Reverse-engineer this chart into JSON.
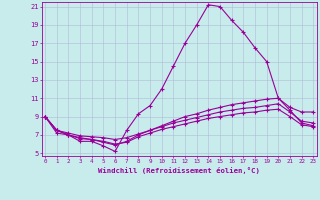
{
  "xlabel": "Windchill (Refroidissement éolien,°C)",
  "background_color": "#c8ecec",
  "grid_color": "#b0b8d8",
  "line_color": "#990099",
  "xmin": 0,
  "xmax": 23,
  "ymin": 5,
  "ymax": 21,
  "yticks": [
    5,
    7,
    9,
    11,
    13,
    15,
    17,
    19,
    21
  ],
  "xticks": [
    0,
    1,
    2,
    3,
    4,
    5,
    6,
    7,
    8,
    9,
    10,
    11,
    12,
    13,
    14,
    15,
    16,
    17,
    18,
    19,
    20,
    21,
    22,
    23
  ],
  "line1_x": [
    0,
    1,
    2,
    3,
    4,
    5,
    6,
    7,
    8,
    9,
    10,
    11,
    12,
    13,
    14,
    15,
    16,
    17,
    18,
    19,
    20,
    21,
    22,
    23
  ],
  "line1_y": [
    9.0,
    7.5,
    7.0,
    6.3,
    6.3,
    5.8,
    5.2,
    7.5,
    9.3,
    10.2,
    12.0,
    14.5,
    17.0,
    19.0,
    21.2,
    21.0,
    19.5,
    18.2,
    16.5,
    15.0,
    11.0,
    10.0,
    9.5,
    9.5
  ],
  "line2_x": [
    0,
    1,
    2,
    3,
    4,
    5,
    6,
    7,
    8,
    9,
    10,
    11,
    12,
    13,
    14,
    15,
    16,
    17,
    18,
    19,
    20,
    21,
    22,
    23
  ],
  "line2_y": [
    9.0,
    7.5,
    7.0,
    6.6,
    6.5,
    6.2,
    5.9,
    6.3,
    7.0,
    7.5,
    8.0,
    8.5,
    9.0,
    9.3,
    9.7,
    10.0,
    10.3,
    10.5,
    10.7,
    10.9,
    11.0,
    9.7,
    8.3,
    8.0
  ],
  "line3_x": [
    0,
    1,
    2,
    3,
    4,
    5,
    6,
    7,
    8,
    9,
    10,
    11,
    12,
    13,
    14,
    15,
    16,
    17,
    18,
    19,
    20,
    21,
    22,
    23
  ],
  "line3_y": [
    9.0,
    7.5,
    7.2,
    6.9,
    6.8,
    6.7,
    6.5,
    6.7,
    7.1,
    7.5,
    7.9,
    8.3,
    8.6,
    8.9,
    9.2,
    9.5,
    9.7,
    9.9,
    10.0,
    10.2,
    10.4,
    9.5,
    8.5,
    8.3
  ],
  "line4_x": [
    0,
    1,
    2,
    3,
    4,
    5,
    6,
    7,
    8,
    9,
    10,
    11,
    12,
    13,
    14,
    15,
    16,
    17,
    18,
    19,
    20,
    21,
    22,
    23
  ],
  "line4_y": [
    9.0,
    7.2,
    7.0,
    6.7,
    6.5,
    6.3,
    6.0,
    6.2,
    6.8,
    7.2,
    7.6,
    7.9,
    8.2,
    8.5,
    8.8,
    9.0,
    9.2,
    9.4,
    9.5,
    9.7,
    9.8,
    9.0,
    8.1,
    7.9
  ]
}
